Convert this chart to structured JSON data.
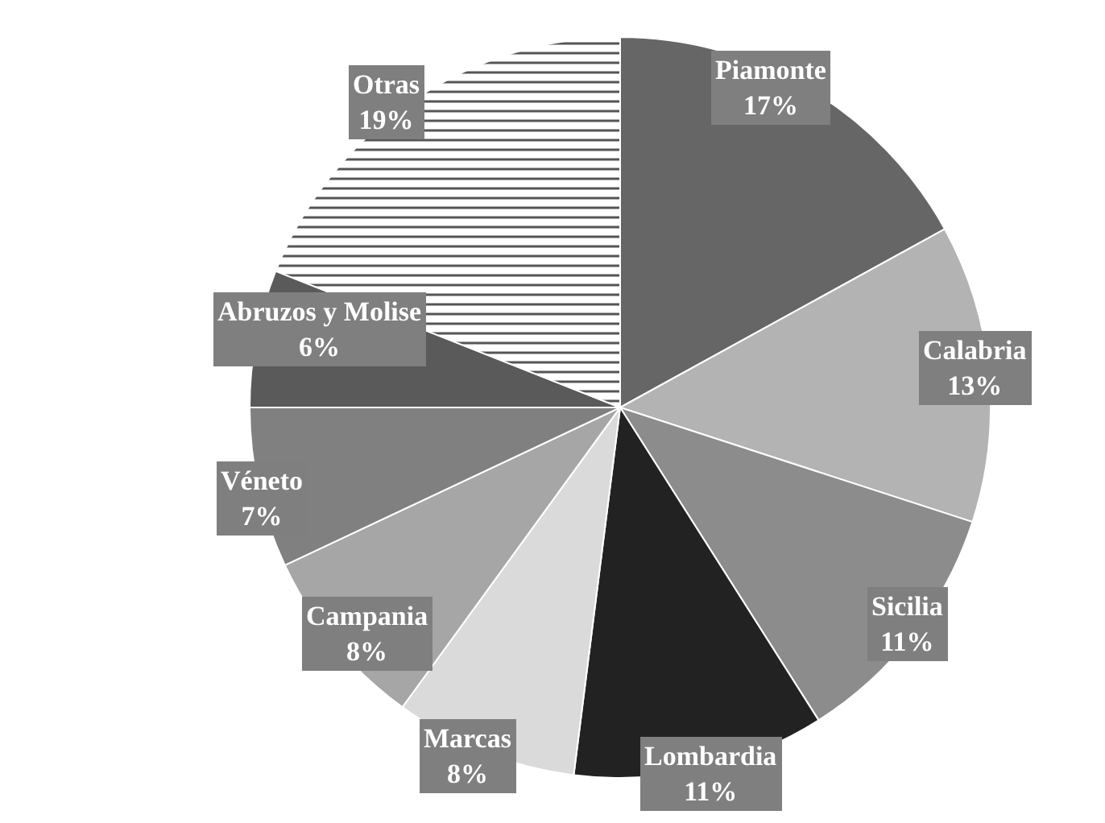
{
  "chart_data": {
    "type": "pie",
    "categories": [
      "Piamonte",
      "Calabria",
      "Sicilia",
      "Lombardia",
      "Marcas",
      "Campania",
      "Véneto",
      "Abruzos y Molise",
      "Otras"
    ],
    "values": [
      17,
      13,
      11,
      11,
      8,
      8,
      7,
      6,
      19
    ],
    "value_labels": [
      "17%",
      "13%",
      "11%",
      "11%",
      "8%",
      "8%",
      "7%",
      "6%",
      "19%"
    ],
    "colors": [
      "#666666",
      "#b3b3b3",
      "#8c8c8c",
      "#222222",
      "#dadada",
      "#a6a6a6",
      "#808080",
      "#5a5a5a",
      "#ffffff"
    ],
    "legend": false
  }
}
